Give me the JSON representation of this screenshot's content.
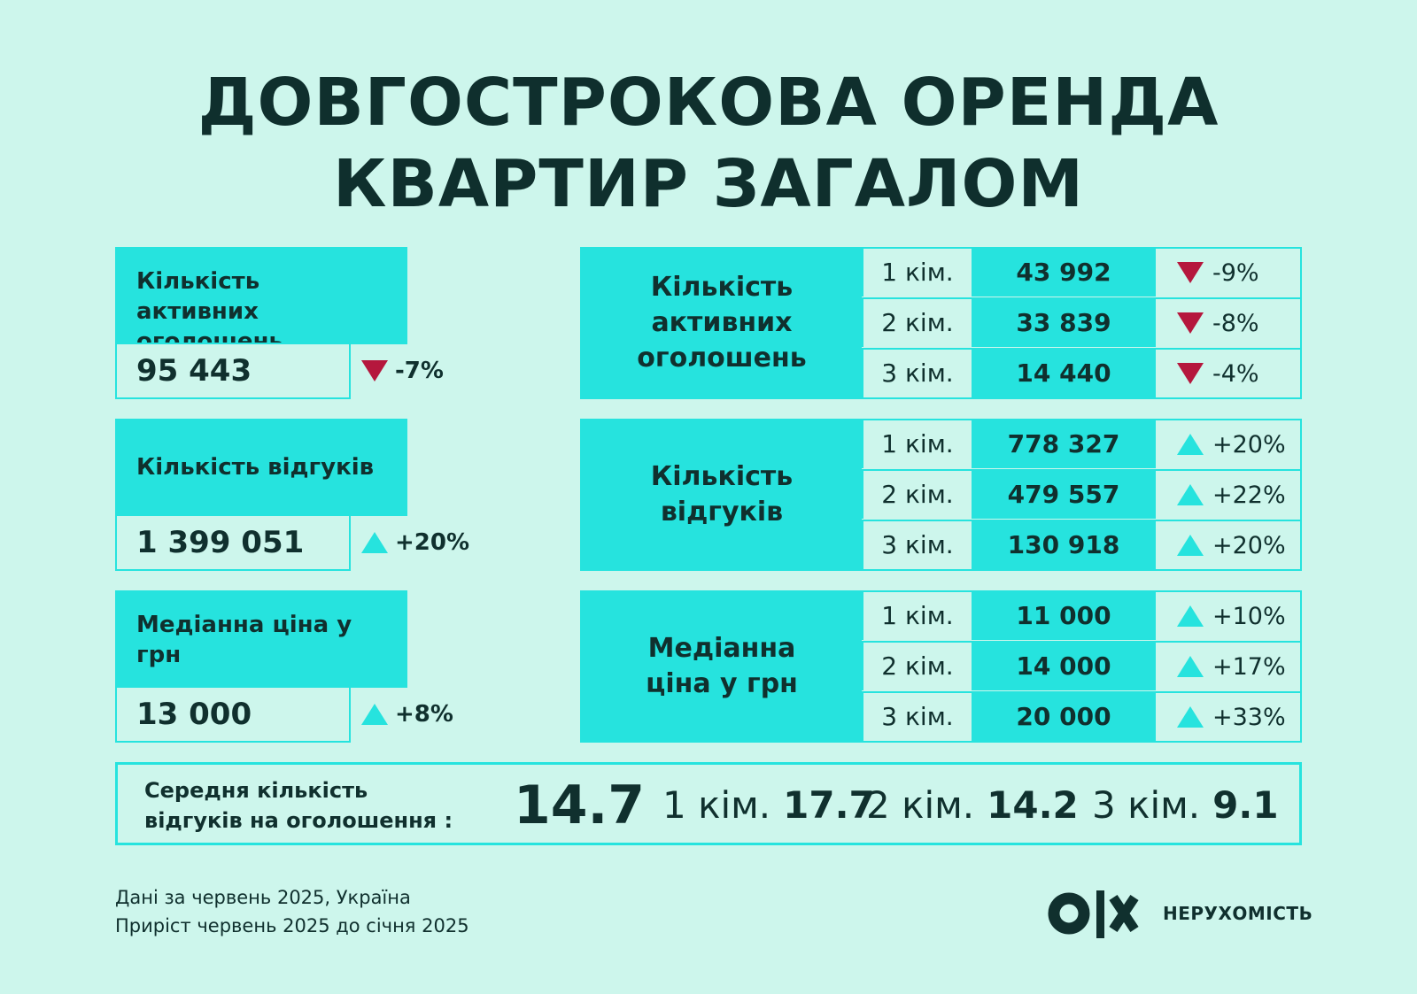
{
  "title": {
    "line1": "ДОВГОСТРОКОВА ОРЕНДА",
    "line2": "КВАРТИР ЗАГАЛОМ"
  },
  "summary": [
    {
      "label": "Кількість активних оголошень",
      "value": "95 443",
      "change": "-7%",
      "direction": "down"
    },
    {
      "label": "Кількість відгуків",
      "value": "1 399 051",
      "change": "+20%",
      "direction": "up"
    },
    {
      "label": "Медіанна ціна у грн",
      "value": "13 000",
      "change": "+8%",
      "direction": "up"
    }
  ],
  "breakdown": [
    {
      "label": "Кількість активних оголошень",
      "rows": [
        {
          "room": "1 кім.",
          "value": "43 992",
          "change": "-9%",
          "direction": "down"
        },
        {
          "room": "2 кім.",
          "value": "33 839",
          "change": "-8%",
          "direction": "down"
        },
        {
          "room": "3 кім.",
          "value": "14 440",
          "change": "-4%",
          "direction": "down"
        }
      ]
    },
    {
      "label": "Кількість відгуків",
      "rows": [
        {
          "room": "1 кім.",
          "value": "778 327",
          "change": "+20%",
          "direction": "up"
        },
        {
          "room": "2 кім.",
          "value": "479 557",
          "change": "+22%",
          "direction": "up"
        },
        {
          "room": "3 кім.",
          "value": "130 918",
          "change": "+20%",
          "direction": "up"
        }
      ]
    },
    {
      "label": "Медіанна ціна у грн",
      "rows": [
        {
          "room": "1 кім.",
          "value": "11 000",
          "change": "+10%",
          "direction": "up"
        },
        {
          "room": "2 кім.",
          "value": "14 000",
          "change": "+17%",
          "direction": "up"
        },
        {
          "room": "3 кім.",
          "value": "20 000",
          "change": "+33%",
          "direction": "up"
        }
      ]
    }
  ],
  "average": {
    "label_line1": "Середня кількість",
    "label_line2": "відгуків на оголошення :",
    "total": "14.7",
    "items": [
      {
        "room": "1 кім.",
        "value": "17.7"
      },
      {
        "room": "2 кім.",
        "value": "14.2"
      },
      {
        "room": "3 кім.",
        "value": "9.1"
      }
    ]
  },
  "footer": {
    "line1": "Дані за червень 2025, Україна",
    "line2": "Приріст червень 2025 до січня 2025"
  },
  "brand": {
    "wordmark": "НЕРУХОМІСТЬ",
    "logo_icon": "olx-logo-icon"
  },
  "colors": {
    "background": "#cdf6ec",
    "accent": "#26e3de",
    "text": "#10302e",
    "down": "#b5173d"
  }
}
